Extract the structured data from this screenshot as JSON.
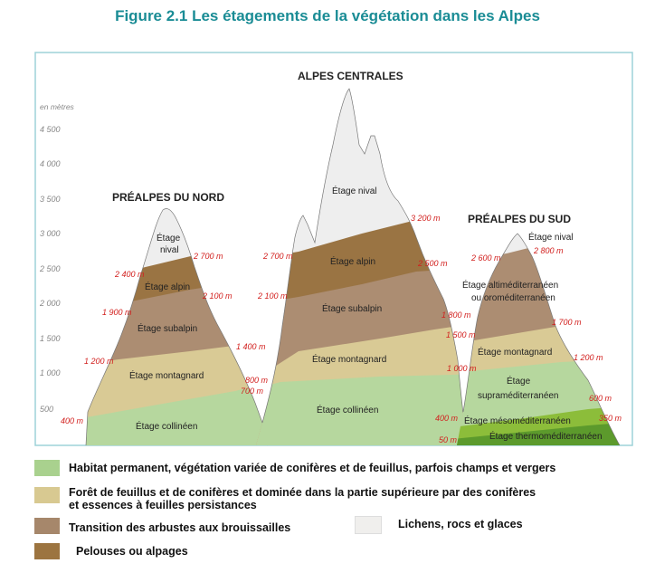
{
  "title": "Figure 2.1 Les étagements de la végétation dans les Alpes",
  "axis": {
    "unit": "en mètres",
    "ticks": [
      "4 500",
      "4 000",
      "3 500",
      "3 000",
      "2 500",
      "2 000",
      "1 500",
      "1 000",
      "500"
    ]
  },
  "regions": {
    "nord": "PRÉALPES DU NORD",
    "centre": "ALPES CENTRALES",
    "sud": "PRÉALPES DU SUD"
  },
  "zones": {
    "nord": [
      "Étage collinéen",
      "Étage montagnard",
      "Étage subalpin",
      "Étage alpin",
      "Étage",
      "nival"
    ],
    "centre": [
      "Étage collinéen",
      "Étage montagnard",
      "Étage subalpin",
      "Étage alpin",
      "Étage nival"
    ],
    "sud": [
      "Étage thermoméditerranéen",
      "Étage mésoméditerranéen",
      "Étage",
      "supraméditerranéen",
      "Étage montagnard",
      "Étage  altiméditerranéen",
      "ou oroméditerranéen",
      "Étage nival"
    ]
  },
  "altitudes": {
    "nord": [
      "400 m",
      "1 200 m",
      "1 900 m",
      "2 400 m",
      "2 700 m",
      "2 100 m",
      "1 400 m"
    ],
    "centre": [
      "700 m",
      "800 m",
      "2 100 m",
      "2 700 m",
      "3 200 m",
      "2 500 m",
      "1 800 m",
      "1 000 m"
    ],
    "sud": [
      "50 m",
      "400 m",
      "1 500 m",
      "2 600 m",
      "2 800 m",
      "1 700 m",
      "1 200 m",
      "600 m",
      "350 m"
    ]
  },
  "legend": [
    {
      "line1": "Habitat permanent, végétation variée de conifères et de feuillus, parfois champs et vergers",
      "line2": "",
      "color": "#a9d18e"
    },
    {
      "line1": "Forêt de feuillus et de conifères et dominée dans la partie supérieure par des conifères",
      "line2": "et essences à feuilles persistances",
      "color": "#d8c991"
    },
    {
      "line1": "Transition des arbustes aux brouissailles",
      "line2": "",
      "color": "#a6876b"
    },
    {
      "line1": "Lichens, rocs et glaces",
      "line2": "",
      "color": "#f0efed"
    },
    {
      "line1": "Pelouses ou alpages",
      "line2": "",
      "color": "#9c7440"
    }
  ],
  "colors": {
    "collineen": "#b6d79e",
    "montagnard": "#d9ca95",
    "subalpin": "#ac8d72",
    "alpin": "#9a7443",
    "nival": "#eeeeee",
    "meso": "#8cbd3a",
    "thermo": "#5c9a2c",
    "alt_label": "#d2201e",
    "frame": "#9ed2d8"
  }
}
